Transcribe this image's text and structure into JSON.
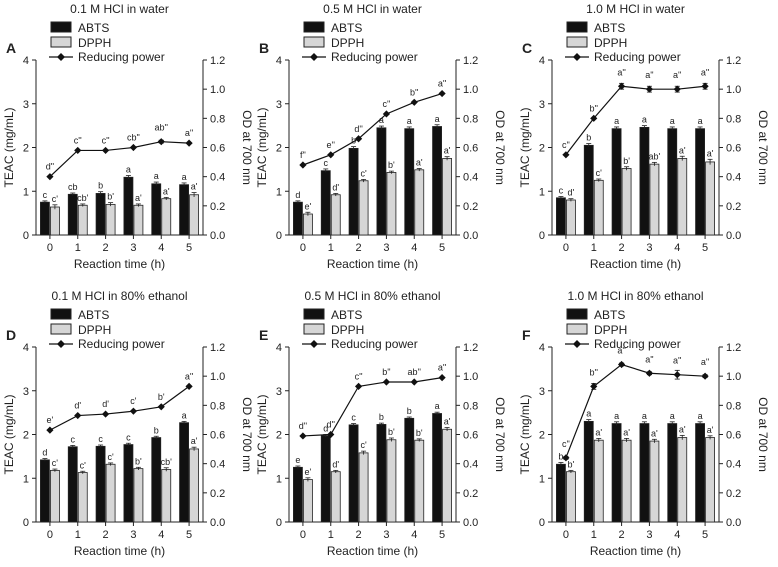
{
  "colors": {
    "abts": "#111111",
    "dpph": "#d6d6d6",
    "line": "#111111",
    "axis": "#222222"
  },
  "legend": {
    "abts": "ABTS",
    "dpph": "DPPH",
    "reducing": "Reducing power"
  },
  "chart_data": [
    {
      "panel": "A",
      "type": "bar",
      "title": "0.1 M HCl in water",
      "xlabel": "Reaction time (h)",
      "ylabel": "TEAC (mg/mL)",
      "y2label": "OD at 700 nm",
      "categories": [
        "0",
        "1",
        "2",
        "3",
        "4",
        "5"
      ],
      "ylim": [
        0,
        4
      ],
      "yticks": [
        "0",
        "1",
        "2",
        "3",
        "4"
      ],
      "y2lim": [
        0,
        1.2
      ],
      "y2ticks": [
        "0.0",
        "0.2",
        "0.4",
        "0.6",
        "0.8",
        "1.0",
        "1.2"
      ],
      "series": [
        {
          "name": "ABTS",
          "values": [
            0.75,
            0.93,
            0.95,
            1.32,
            1.17,
            1.15
          ],
          "err": [
            0.03,
            0.03,
            0.04,
            0.04,
            0.04,
            0.04
          ],
          "labels": [
            "c",
            "cb",
            "b",
            "a",
            "a",
            "a"
          ]
        },
        {
          "name": "DPPH",
          "values": [
            0.64,
            0.68,
            0.7,
            0.68,
            0.83,
            0.92
          ],
          "err": [
            0.05,
            0.03,
            0.04,
            0.03,
            0.03,
            0.05
          ],
          "labels": [
            "c'",
            "cb'",
            "b'",
            "a'",
            "a'",
            "a'"
          ]
        },
        {
          "name": "Reducing power",
          "values": [
            0.4,
            0.58,
            0.58,
            0.6,
            0.64,
            0.63
          ],
          "err": [
            0,
            0,
            0,
            0,
            0.01,
            0
          ],
          "labels": [
            "d''",
            "c''",
            "c''",
            "cb''",
            "ab''",
            "a''"
          ]
        }
      ]
    },
    {
      "panel": "B",
      "type": "bar",
      "title": "0.5 M HCl in water",
      "xlabel": "Reaction time (h)",
      "ylabel": "TEAC (mg/mL)",
      "y2label": "OD at 700 nm",
      "categories": [
        "0",
        "1",
        "2",
        "3",
        "4",
        "5"
      ],
      "ylim": [
        0,
        4
      ],
      "yticks": [
        "0",
        "1",
        "2",
        "3",
        "4"
      ],
      "y2lim": [
        0,
        1.2
      ],
      "y2ticks": [
        "0.0",
        "0.2",
        "0.4",
        "0.6",
        "0.8",
        "1.0",
        "1.2"
      ],
      "series": [
        {
          "name": "ABTS",
          "values": [
            0.75,
            1.47,
            1.98,
            2.45,
            2.43,
            2.48
          ],
          "err": [
            0.03,
            0.04,
            0.04,
            0.04,
            0.04,
            0.04
          ],
          "labels": [
            "d",
            "c",
            "b",
            "a",
            "a",
            "a"
          ]
        },
        {
          "name": "DPPH",
          "values": [
            0.48,
            0.92,
            1.24,
            1.43,
            1.49,
            1.75
          ],
          "err": [
            0.04,
            0.03,
            0.03,
            0.03,
            0.03,
            0.04
          ],
          "labels": [
            "e'",
            "d'",
            "c'",
            "b'",
            "a'",
            "a'"
          ]
        },
        {
          "name": "Reducing power",
          "values": [
            0.48,
            0.55,
            0.66,
            0.83,
            0.91,
            0.97
          ],
          "err": [
            0,
            0,
            0,
            0,
            0,
            0
          ],
          "labels": [
            "f''",
            "e''",
            "d''",
            "c''",
            "b''",
            "a''"
          ]
        }
      ]
    },
    {
      "panel": "C",
      "type": "bar",
      "title": "1.0 M HCl in water",
      "xlabel": "Reaction time (h)",
      "ylabel": "TEAC (mg/mL)",
      "y2label": "OD at 700 nm",
      "categories": [
        "0",
        "1",
        "2",
        "3",
        "4",
        "5"
      ],
      "ylim": [
        0,
        4
      ],
      "yticks": [
        "0",
        "1",
        "2",
        "3",
        "4"
      ],
      "y2lim": [
        0,
        1.2
      ],
      "y2ticks": [
        "0.0",
        "0.2",
        "0.4",
        "0.6",
        "0.8",
        "1.0",
        "1.2"
      ],
      "series": [
        {
          "name": "ABTS",
          "values": [
            0.85,
            2.05,
            2.43,
            2.46,
            2.43,
            2.43
          ],
          "err": [
            0.03,
            0.04,
            0.04,
            0.04,
            0.04,
            0.04
          ],
          "labels": [
            "c",
            "b",
            "a",
            "a",
            "a",
            "a"
          ]
        },
        {
          "name": "DPPH",
          "values": [
            0.8,
            1.25,
            1.52,
            1.62,
            1.75,
            1.67
          ],
          "err": [
            0.03,
            0.03,
            0.04,
            0.04,
            0.05,
            0.06
          ],
          "labels": [
            "d'",
            "c'",
            "b'",
            "ab'",
            "a'",
            "a'"
          ]
        },
        {
          "name": "Reducing power",
          "values": [
            0.55,
            0.8,
            1.02,
            1.0,
            1.0,
            1.02
          ],
          "err": [
            0,
            0,
            0.02,
            0.02,
            0.02,
            0.02
          ],
          "labels": [
            "c''",
            "b''",
            "a''",
            "a''",
            "a''",
            "a''"
          ]
        }
      ]
    },
    {
      "panel": "D",
      "type": "bar",
      "title": "0.1 M HCl in 80% ethanol",
      "xlabel": "Reaction time (h)",
      "ylabel": "TEAC (mg/mL)",
      "y2label": "OD at 700 nm",
      "categories": [
        "0",
        "1",
        "2",
        "3",
        "4",
        "5"
      ],
      "ylim": [
        0,
        4
      ],
      "yticks": [
        "0",
        "1",
        "2",
        "3",
        "4"
      ],
      "y2lim": [
        0,
        1.2
      ],
      "y2ticks": [
        "0.0",
        "0.2",
        "0.4",
        "0.6",
        "0.8",
        "1.0",
        "1.2"
      ],
      "series": [
        {
          "name": "ABTS",
          "values": [
            1.42,
            1.72,
            1.73,
            1.77,
            1.93,
            2.27
          ],
          "err": [
            0.03,
            0.03,
            0.03,
            0.03,
            0.03,
            0.03
          ],
          "labels": [
            "d",
            "c",
            "c",
            "c",
            "b",
            "a"
          ]
        },
        {
          "name": "DPPH",
          "values": [
            1.18,
            1.13,
            1.32,
            1.22,
            1.2,
            1.67
          ],
          "err": [
            0.03,
            0.03,
            0.03,
            0.03,
            0.04,
            0.04
          ],
          "labels": [
            "c'",
            "c'",
            "c'",
            "b'",
            "cb'",
            "a'"
          ]
        },
        {
          "name": "Reducing power",
          "values": [
            0.63,
            0.73,
            0.74,
            0.76,
            0.79,
            0.93
          ],
          "err": [
            0,
            0,
            0,
            0,
            0,
            0
          ],
          "labels": [
            "e'",
            "d'",
            "d'",
            "c'",
            "b'",
            "a''"
          ]
        }
      ]
    },
    {
      "panel": "E",
      "type": "bar",
      "title": "0.5 M HCl in 80% ethanol",
      "xlabel": "Reaction time (h)",
      "ylabel": "TEAC (mg/mL)",
      "y2label": "OD at 700 nm",
      "categories": [
        "0",
        "1",
        "2",
        "3",
        "4",
        "5"
      ],
      "ylim": [
        0,
        4
      ],
      "yticks": [
        "0",
        "1",
        "2",
        "3",
        "4"
      ],
      "y2lim": [
        0,
        1.2
      ],
      "y2ticks": [
        "0.0",
        "0.2",
        "0.4",
        "0.6",
        "0.8",
        "1.0",
        "1.2"
      ],
      "series": [
        {
          "name": "ABTS",
          "values": [
            1.25,
            1.97,
            2.22,
            2.23,
            2.37,
            2.48
          ],
          "err": [
            0.03,
            0.03,
            0.03,
            0.03,
            0.03,
            0.03
          ],
          "labels": [
            "e",
            "d",
            "c",
            "b",
            "b",
            "a"
          ]
        },
        {
          "name": "DPPH",
          "values": [
            0.97,
            1.15,
            1.58,
            1.88,
            1.87,
            2.12
          ],
          "err": [
            0.04,
            0.03,
            0.04,
            0.04,
            0.03,
            0.04
          ],
          "labels": [
            "e'",
            "d'",
            "c'",
            "b'",
            "b'",
            "a'"
          ]
        },
        {
          "name": "Reducing power",
          "values": [
            0.59,
            0.6,
            0.93,
            0.96,
            0.96,
            0.99
          ],
          "err": [
            0,
            0,
            0,
            0,
            0,
            0
          ],
          "labels": [
            "d''",
            "d''",
            "c''",
            "b''",
            "ab''",
            "a''"
          ]
        }
      ]
    },
    {
      "panel": "F",
      "type": "bar",
      "title": "1.0 M HCl in 80% ethanol",
      "xlabel": "Reaction time (h)",
      "ylabel": "TEAC (mg/mL)",
      "y2label": "OD at 700 nm",
      "categories": [
        "0",
        "1",
        "2",
        "3",
        "4",
        "5"
      ],
      "ylim": [
        0,
        4
      ],
      "yticks": [
        "0",
        "1",
        "2",
        "3",
        "4"
      ],
      "y2lim": [
        0,
        1.2
      ],
      "y2ticks": [
        "0.0",
        "0.2",
        "0.4",
        "0.6",
        "0.8",
        "1.0",
        "1.2"
      ],
      "series": [
        {
          "name": "ABTS",
          "values": [
            1.32,
            2.3,
            2.25,
            2.25,
            2.25,
            2.25
          ],
          "err": [
            0.04,
            0.04,
            0.04,
            0.04,
            0.04,
            0.04
          ],
          "labels": [
            "b",
            "a",
            "a",
            "a",
            "a",
            "a"
          ]
        },
        {
          "name": "DPPH",
          "values": [
            1.15,
            1.87,
            1.87,
            1.85,
            1.93,
            1.93
          ],
          "err": [
            0.03,
            0.04,
            0.04,
            0.04,
            0.05,
            0.04
          ],
          "labels": [
            "b'",
            "a'",
            "a'",
            "a'",
            "a'",
            "a'"
          ]
        },
        {
          "name": "Reducing power",
          "values": [
            0.44,
            0.93,
            1.08,
            1.02,
            1.01,
            1.0
          ],
          "err": [
            0.01,
            0.02,
            0.01,
            0.01,
            0.03,
            0.01
          ],
          "labels": [
            "c''",
            "b''",
            "a''",
            "a''",
            "a''",
            "a''"
          ]
        }
      ]
    }
  ]
}
